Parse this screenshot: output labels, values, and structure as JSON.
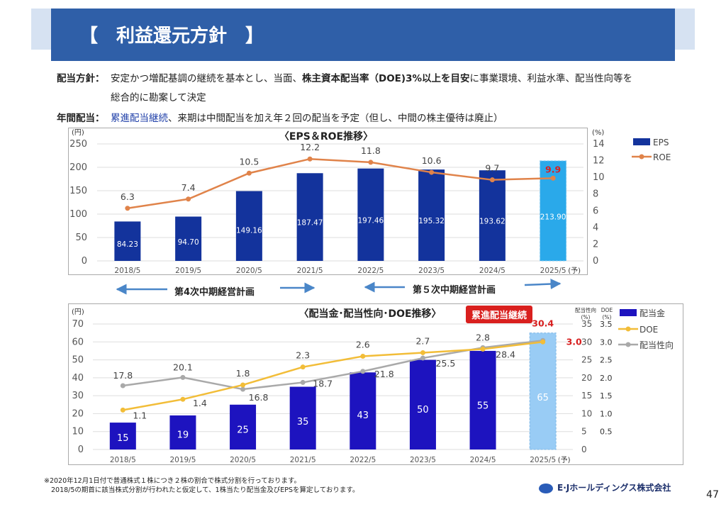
{
  "header": {
    "title": "【　利益還元方針　】"
  },
  "policy": {
    "label": "配当方針：",
    "line1_pre": "安定かつ増配基調の継続を基本とし、当面、",
    "line1_bold": "株主資本配当率（DOE)3%以上を目安",
    "line1_post": "に事業環境、利益水準、配当性向等を",
    "line2": "総合的に勘案して決定"
  },
  "annual": {
    "label": "年間配当：",
    "blue": "累進配当継続",
    "rest": "、来期は中間配当を加え年２回の配当を予定（但し、中間の株主優待は廃止）"
  },
  "plans": {
    "plan4": "第4次中期経営計画",
    "plan5": "第５次中期経営計画"
  },
  "badge": "累進配当継続",
  "footnote": {
    "line1": "※2020年12月1日付で普通株式１株につき２株の割合で株式分割を行っております。",
    "line2": "2018/5の期首に該当株式分割が行われたと仮定して、1株当たり配当金及びEPSを算定しております。"
  },
  "company": "E·Jホールディングス株式会社",
  "page_number": "47",
  "colors": {
    "navy": "#13339c",
    "forecast": "#2aa9ea",
    "orange": "#e0834a",
    "blue2": "#1d13bf",
    "lightblue": "#99ccf5",
    "gold": "#f2bd38",
    "gray": "#a9a9a9"
  },
  "chart_data": [
    {
      "type": "bar",
      "title": "〈EPS＆ROE推移〉",
      "categories": [
        "2018/5",
        "2019/5",
        "2020/5",
        "2021/5",
        "2022/5",
        "2023/5",
        "2024/5",
        "2025/5"
      ],
      "forecast_mark": "(予)",
      "left_unit": "(円)",
      "right_unit": "(%)",
      "ylim": [
        0,
        250
      ],
      "yticks": [
        0,
        50,
        100,
        150,
        200,
        250
      ],
      "y2lim": [
        0,
        14
      ],
      "y2ticks": [
        0,
        2,
        4,
        6,
        8,
        10,
        12,
        14
      ],
      "series": [
        {
          "name": "EPS",
          "kind": "bar",
          "axis": "left",
          "values": [
            84.23,
            94.7,
            149.16,
            187.47,
            197.46,
            195.32,
            193.62,
            213.9
          ],
          "labels": [
            "84.23",
            "94.70",
            "149.16",
            "187.47",
            "197.46",
            "195.32",
            "193.62",
            "213.90"
          ]
        },
        {
          "name": "ROE",
          "kind": "line",
          "axis": "right",
          "values": [
            6.3,
            7.4,
            10.5,
            12.2,
            11.8,
            10.6,
            9.7,
            9.9
          ],
          "labels": [
            "6.3",
            "7.4",
            "10.5",
            "12.2",
            "11.8",
            "10.6",
            "9.7",
            "9.9"
          ]
        }
      ],
      "legend": "right"
    },
    {
      "type": "bar",
      "title": "〈配当金･配当性向･DOE推移〉",
      "categories": [
        "2018/5",
        "2019/5",
        "2020/5",
        "2021/5",
        "2022/5",
        "2023/5",
        "2024/5",
        "2025/5"
      ],
      "forecast_mark": "(予)",
      "left_unit": "(円)",
      "payout_unit": [
        "配当性向",
        "(%)"
      ],
      "doe_unit": [
        "DOE",
        "(%)"
      ],
      "ylim": [
        0,
        70
      ],
      "yticks": [
        0,
        10,
        20,
        30,
        40,
        50,
        60,
        70
      ],
      "payout_ticks": [
        0,
        5,
        10,
        15,
        20,
        25,
        30,
        35
      ],
      "doe_ticks": [
        "0.5",
        "1.0",
        "1.5",
        "2.0",
        "2.5",
        "3.0",
        "3.5"
      ],
      "series": [
        {
          "name": "配当金",
          "kind": "bar",
          "axis": "left",
          "values": [
            15,
            19,
            25,
            35,
            43,
            50,
            55,
            65
          ],
          "labels": [
            "15",
            "19",
            "25",
            "35",
            "43",
            "50",
            "55",
            "65"
          ]
        },
        {
          "name": "DOE",
          "kind": "line",
          "axis": "doe",
          "values": [
            1.1,
            1.4,
            1.8,
            2.3,
            2.6,
            2.7,
            2.8,
            3.0
          ],
          "labels": [
            "1.1",
            "1.4",
            "1.8",
            "2.3",
            "2.6",
            "2.7",
            "2.8",
            "3.0"
          ]
        },
        {
          "name": "配当性向",
          "kind": "line",
          "axis": "payout",
          "values": [
            17.8,
            20.1,
            16.8,
            18.7,
            21.8,
            25.5,
            28.4,
            30.4
          ],
          "labels": [
            "17.8",
            "20.1",
            "16.8",
            "18.7",
            "21.8",
            "25.5",
            "28.4",
            "30.4"
          ]
        }
      ],
      "legend": "right"
    }
  ]
}
